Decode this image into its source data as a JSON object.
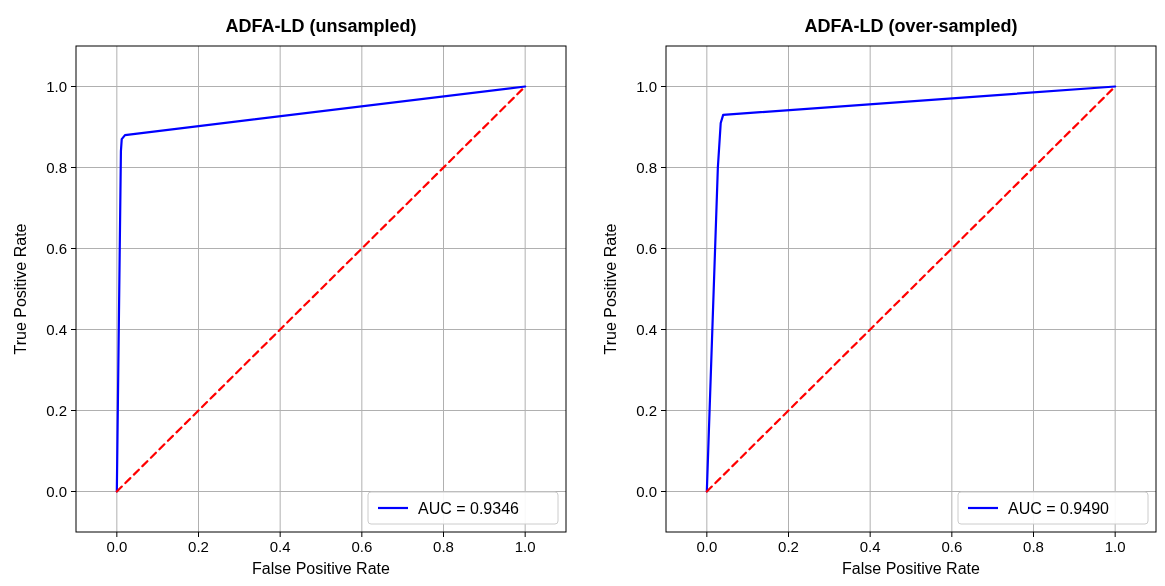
{
  "chart_data": [
    {
      "type": "line",
      "title": "ADFA-LD (unsampled)",
      "xlabel": "False Positive Rate",
      "ylabel": "True Positive Rate",
      "xlim": [
        -0.1,
        1.1
      ],
      "ylim": [
        -0.1,
        1.1
      ],
      "xticks": [
        {
          "value": 0,
          "label": "0.0"
        },
        {
          "value": 0.2,
          "label": "0.2"
        },
        {
          "value": 0.4,
          "label": "0.4"
        },
        {
          "value": 0.6,
          "label": "0.6"
        },
        {
          "value": 0.8,
          "label": "0.8"
        },
        {
          "value": 1,
          "label": "1.0"
        }
      ],
      "yticks": [
        {
          "value": 0,
          "label": "0.0"
        },
        {
          "value": 0.2,
          "label": "0.2"
        },
        {
          "value": 0.4,
          "label": "0.4"
        },
        {
          "value": 0.6,
          "label": "0.6"
        },
        {
          "value": 0.8,
          "label": "0.8"
        },
        {
          "value": 1,
          "label": "1.0"
        }
      ],
      "grid": true,
      "legend": "bottom right",
      "series": [
        {
          "name": "AUC = 0.9346",
          "color": "#0000ff",
          "line_style": "solid",
          "x": [
            0,
            0.01,
            0.012,
            0.02,
            1
          ],
          "values": [
            0,
            0.84,
            0.87,
            0.88,
            1
          ]
        },
        {
          "color": "#ff0000",
          "line_style": "dashed",
          "x": [
            0,
            1
          ],
          "values": [
            0,
            1
          ]
        }
      ]
    },
    {
      "type": "line",
      "title": "ADFA-LD (over-sampled)",
      "xlabel": "False Positive Rate",
      "ylabel": "True Positive Rate",
      "xlim": [
        -0.1,
        1.1
      ],
      "ylim": [
        -0.1,
        1.1
      ],
      "xticks": [
        {
          "value": 0,
          "label": "0.0"
        },
        {
          "value": 0.2,
          "label": "0.2"
        },
        {
          "value": 0.4,
          "label": "0.4"
        },
        {
          "value": 0.6,
          "label": "0.6"
        },
        {
          "value": 0.8,
          "label": "0.8"
        },
        {
          "value": 1,
          "label": "1.0"
        }
      ],
      "yticks": [
        {
          "value": 0,
          "label": "0.0"
        },
        {
          "value": 0.2,
          "label": "0.2"
        },
        {
          "value": 0.4,
          "label": "0.4"
        },
        {
          "value": 0.6,
          "label": "0.6"
        },
        {
          "value": 0.8,
          "label": "0.8"
        },
        {
          "value": 1,
          "label": "1.0"
        }
      ],
      "grid": true,
      "legend": "bottom right",
      "series": [
        {
          "name": "AUC = 0.9490",
          "color": "#0000ff",
          "line_style": "solid",
          "x": [
            0,
            0.027,
            0.034,
            0.04,
            1
          ],
          "values": [
            0,
            0.8,
            0.91,
            0.93,
            1
          ]
        },
        {
          "color": "#ff0000",
          "line_style": "dashed",
          "x": [
            0,
            1
          ],
          "values": [
            0,
            1
          ]
        }
      ]
    }
  ]
}
